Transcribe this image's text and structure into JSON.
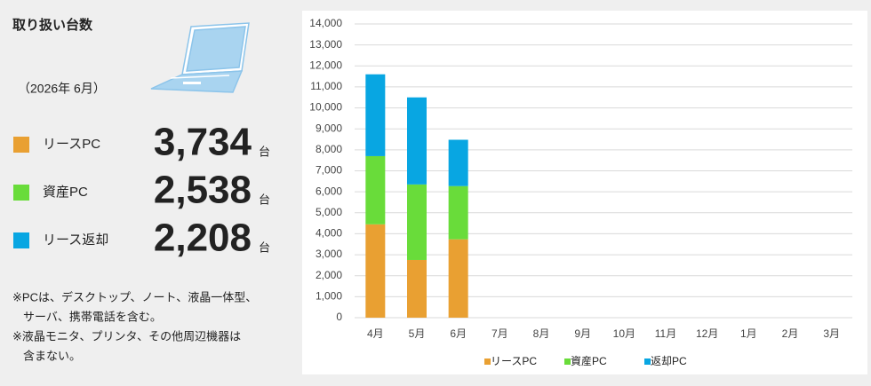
{
  "panel": {
    "title": "取り扱い台数",
    "date": "（2026年 6月）",
    "items": [
      {
        "label": "リースPC",
        "value": "3,734",
        "unit": "台",
        "color": "#e9a032"
      },
      {
        "label": "資産PC",
        "value": "2,538",
        "unit": "台",
        "color": "#69dc3a"
      },
      {
        "label": "リース返却",
        "value": "2,208",
        "unit": "台",
        "color": "#08a6e2"
      }
    ],
    "notes": [
      [
        "※PCは、デスクトップ、ノート、液晶一体型、",
        "サーバ、携帯電話を含む。"
      ],
      [
        "※液晶モニタ、プリンタ、その他周辺機器は",
        "含まない。"
      ]
    ]
  },
  "chart_data": {
    "type": "stacked_bar",
    "categories": [
      "4月",
      "5月",
      "6月",
      "7月",
      "8月",
      "9月",
      "10月",
      "11月",
      "12月",
      "1月",
      "2月",
      "3月"
    ],
    "series": [
      {
        "name": "リースPC",
        "color": "#e9a032",
        "values": [
          4450,
          2750,
          3734,
          null,
          null,
          null,
          null,
          null,
          null,
          null,
          null,
          null
        ]
      },
      {
        "name": "資産PC",
        "color": "#69dc3a",
        "values": [
          3250,
          3600,
          2538,
          null,
          null,
          null,
          null,
          null,
          null,
          null,
          null,
          null
        ]
      },
      {
        "name": "返却PC",
        "color": "#08a6e2",
        "values": [
          3900,
          4150,
          2208,
          null,
          null,
          null,
          null,
          null,
          null,
          null,
          null,
          null
        ]
      }
    ],
    "ylim": [
      0,
      14000
    ],
    "yticks": [
      0,
      {
        "value": 1000,
        "label": "1,000"
      },
      {
        "value": 2000,
        "label": "2,000"
      },
      {
        "value": 3000,
        "label": "3,000"
      },
      {
        "value": 4000,
        "label": "4,000"
      },
      {
        "value": 5000,
        "label": "5,000"
      },
      {
        "value": 6000,
        "label": "6,000"
      },
      {
        "value": 7000,
        "label": "7,000"
      },
      {
        "value": 8000,
        "label": "8,000"
      },
      {
        "value": 9000,
        "label": "9,000"
      },
      {
        "value": 10000,
        "label": "10,000"
      },
      {
        "value": 11000,
        "label": "11,000"
      },
      {
        "value": 12000,
        "label": "12,000"
      },
      {
        "value": 13000,
        "label": "13,000"
      },
      {
        "value": 14000,
        "label": "14,000"
      }
    ],
    "grid": true,
    "legend": "bottom"
  }
}
